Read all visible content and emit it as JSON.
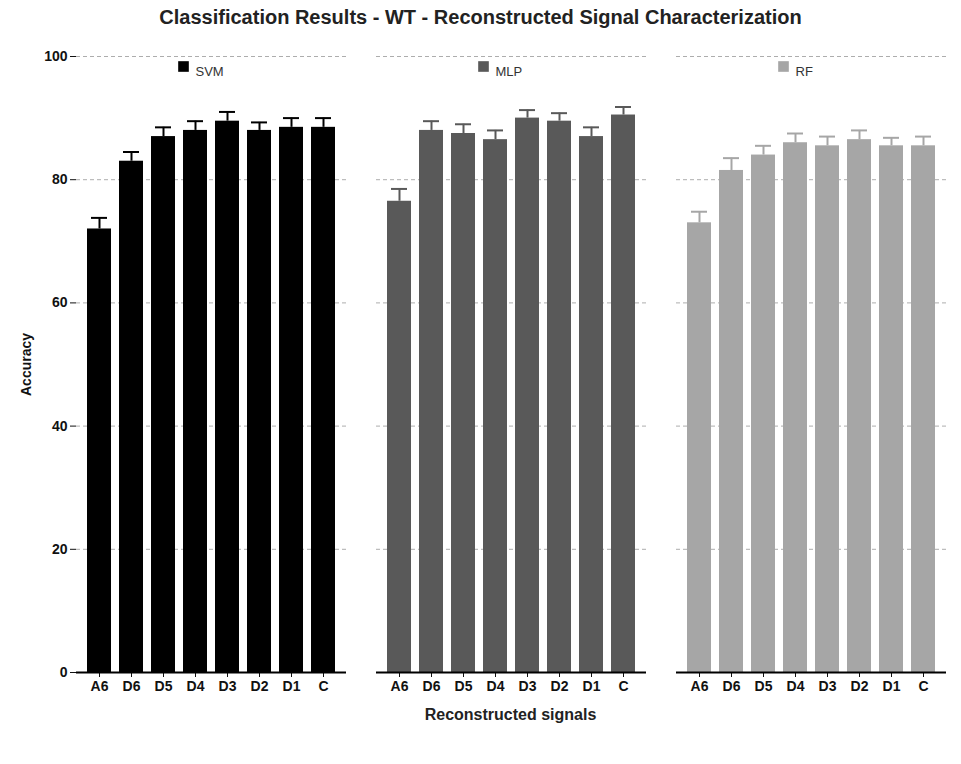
{
  "chart_data": {
    "type": "bar",
    "title": "Classification Results  - WT - Reconstructed Signal Characterization",
    "x_label": "Reconstructed signals",
    "y_label": "Accuracy",
    "categories": [
      "A6",
      "D6",
      "D5",
      "D4",
      "D3",
      "D2",
      "D1",
      "C"
    ],
    "series": [
      {
        "name": "SVM",
        "color": "#000000",
        "values": [
          72,
          83,
          87,
          88,
          89.5,
          88,
          88.5,
          88.5
        ],
        "errors": [
          1.8,
          1.5,
          1.5,
          1.5,
          1.5,
          1.3,
          1.5,
          1.5
        ]
      },
      {
        "name": "MLP",
        "color": "#595959",
        "values": [
          76.5,
          88,
          87.5,
          86.5,
          90,
          89.5,
          87,
          90.5
        ],
        "errors": [
          2,
          1.5,
          1.5,
          1.5,
          1.3,
          1.3,
          1.5,
          1.3
        ]
      },
      {
        "name": "RF",
        "color": "#a6a6a6",
        "values": [
          73,
          81.5,
          84,
          86,
          85.5,
          86.5,
          85.5,
          85.5
        ],
        "errors": [
          1.8,
          2,
          1.5,
          1.5,
          1.5,
          1.5,
          1.3,
          1.5
        ]
      }
    ],
    "ylim": [
      0,
      100
    ],
    "yticks": [
      0,
      20,
      40,
      60,
      80,
      100
    ],
    "grid": true,
    "legend": "top"
  }
}
